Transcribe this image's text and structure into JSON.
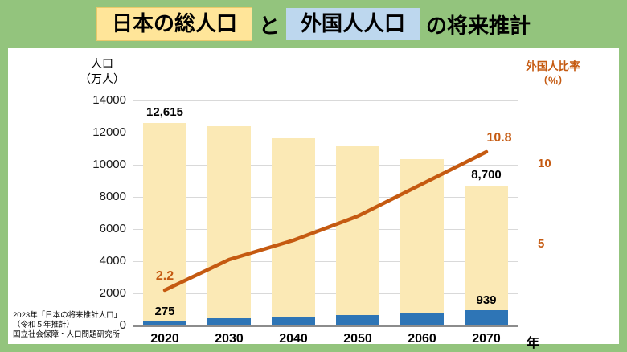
{
  "title": {
    "part_total": "日本の総人口",
    "connector": "と",
    "part_foreign": "外国人人口",
    "suffix": "の将来推計"
  },
  "axes": {
    "left_title_line1": "人口",
    "left_title_line2": "（万人）",
    "right_title_line1": "外国人比率",
    "right_title_line2": "（%）",
    "x_unit": "年",
    "left_ticks": [
      0,
      2000,
      4000,
      6000,
      8000,
      10000,
      12000,
      14000
    ],
    "right_ticks": [
      5,
      10
    ]
  },
  "source": {
    "line1": "2023年「日本の将来推計人口」",
    "line2": "（令和５年推計）",
    "line3": "国立社会保障・人口問題研究所"
  },
  "colors": {
    "frame_green": "#93C47D",
    "title_yellow": "#FFE599",
    "title_blue": "#BDD7EE",
    "bar_cream": "#FBE9B5",
    "bar_blue": "#2E75B6",
    "line_orange": "#C55A11",
    "grid": "#D9D9D9"
  },
  "chart_data": {
    "type": "bar",
    "subtype": "bar+line combo",
    "categories": [
      "2020",
      "2030",
      "2040",
      "2050",
      "2060",
      "2070"
    ],
    "left_axis": {
      "min": 0,
      "max": 14000
    },
    "right_axis": {
      "min": 0,
      "max": 14,
      "shown_ticks": [
        5,
        10
      ]
    },
    "grid": "horizontal",
    "series": [
      {
        "name": "総人口（万人）",
        "type": "bar",
        "axis": "left",
        "values": [
          12615,
          12400,
          11650,
          11150,
          10350,
          8700
        ],
        "labels": {
          "0": "12,615",
          "5": "8,700"
        }
      },
      {
        "name": "外国人人口（万人）",
        "type": "bar",
        "axis": "left",
        "values": [
          275,
          440,
          550,
          650,
          800,
          939
        ],
        "labels": {
          "0": "275",
          "5": "939"
        }
      },
      {
        "name": "外国人比率（%）",
        "type": "line",
        "axis": "right",
        "values": [
          2.2,
          4.1,
          5.3,
          6.8,
          8.8,
          10.8
        ],
        "labels": {
          "0": "2.2",
          "5": "10.8"
        }
      }
    ]
  }
}
